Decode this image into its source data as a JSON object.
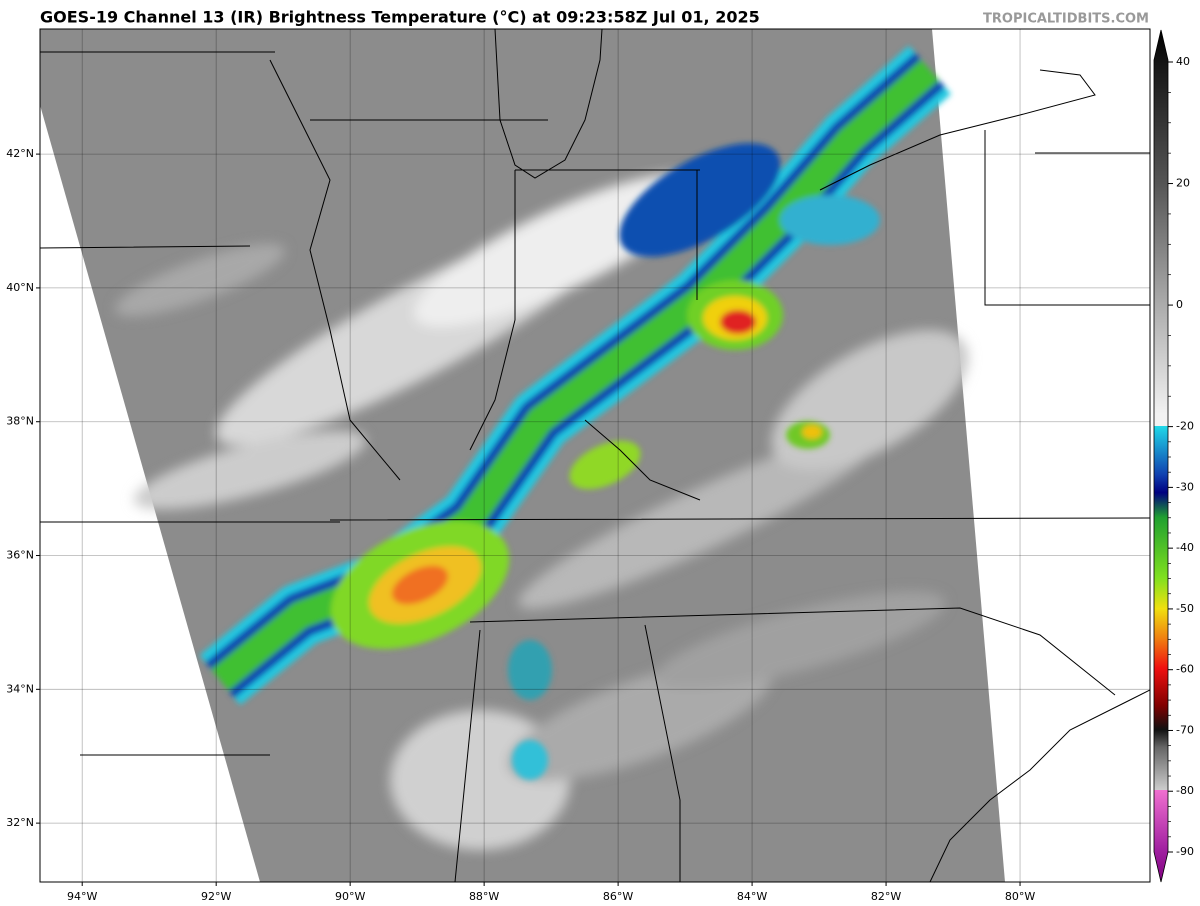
{
  "header": {
    "title": "GOES-19 Channel 13 (IR) Brightness Temperature (°C) at 09:23:58Z Jul 01, 2025",
    "credit": "TROPICALTIDBITS.COM"
  },
  "map": {
    "lon_range": [
      -94.63,
      -78.06
    ],
    "lat_range": [
      31.12,
      43.87
    ],
    "lon_ticks": [
      {
        "value": -94,
        "label": "94°W"
      },
      {
        "value": -92,
        "label": "92°W"
      },
      {
        "value": -90,
        "label": "90°W"
      },
      {
        "value": -88,
        "label": "88°W"
      },
      {
        "value": -86,
        "label": "86°W"
      },
      {
        "value": -84,
        "label": "84°W"
      },
      {
        "value": -82,
        "label": "82°W"
      },
      {
        "value": -80,
        "label": "80°W"
      }
    ],
    "lat_ticks": [
      {
        "value": 42,
        "label": "42°N"
      },
      {
        "value": 40,
        "label": "40°N"
      },
      {
        "value": 38,
        "label": "38°N"
      },
      {
        "value": 36,
        "label": "36°N"
      },
      {
        "value": 34,
        "label": "34°N"
      },
      {
        "value": 32,
        "label": "32°N"
      }
    ]
  },
  "colorbar": {
    "ticks": [
      40,
      20,
      0,
      -20,
      -30,
      -40,
      -50,
      -60,
      -70,
      -80,
      -90
    ]
  }
}
